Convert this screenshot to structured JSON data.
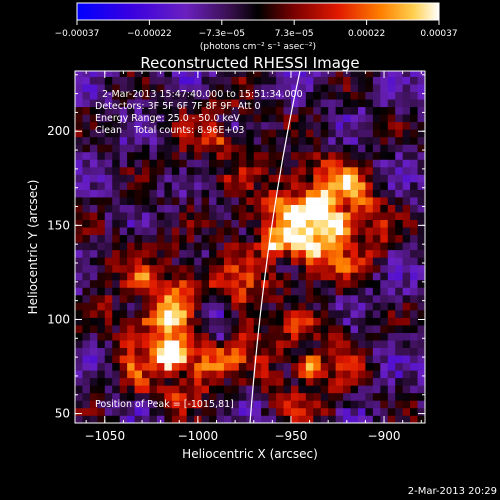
{
  "chart_data": {
    "type": "heatmap",
    "title": "Reconstructed RHESSI Image",
    "xlabel": "Heliocentric X (arcsec)",
    "ylabel": "Heliocentric Y (arcsec)",
    "xlim": [
      -1066,
      -878
    ],
    "ylim": [
      45,
      232
    ],
    "x_ticks": [
      -1050,
      -1000,
      -950,
      -900
    ],
    "y_ticks": [
      50,
      100,
      150,
      200
    ],
    "x_tick_labels": [
      "−1050",
      "−1000",
      "−950",
      "−900"
    ],
    "y_tick_labels": [
      "50",
      "100",
      "150",
      "200"
    ],
    "colorbar": {
      "min": -0.00037,
      "max": 0.00037,
      "tick_labels": [
        "−0.00037",
        "−0.00022",
        "−7.3e−05",
        "7.3e−05",
        "0.00022",
        "0.00037"
      ],
      "units_label": "(photons cm⁻² s⁻¹ asec⁻²)",
      "colors": [
        "#0000ff",
        "#4a00c0",
        "#7a3fb0",
        "#000000",
        "#8b0000",
        "#ff2000",
        "#ff9000",
        "#ffe060",
        "#ffffff"
      ]
    },
    "annotations": [
      "2-Mar-2013 15:47:40.000 to 15:51:34.000",
      "Detectors: 3F 5F 6F 7F 8F 9F, Att 0",
      "Energy Range: 25.0 - 50.0 keV",
      "Clean    Total counts: 8.96E+03"
    ],
    "peak_label": "Position of Peak = [-1015,81]",
    "peak": [
      -1015,
      81
    ],
    "limb_label": "",
    "grid_points": [
      {
        "x": -1015,
        "y": 81,
        "v": 1.0
      },
      {
        "x": -935,
        "y": 160,
        "v": 0.9
      },
      {
        "x": -925,
        "y": 150,
        "v": 0.85
      },
      {
        "x": -940,
        "y": 75,
        "v": 0.8
      },
      {
        "x": -960,
        "y": 140,
        "v": 0.7
      },
      {
        "x": -1030,
        "y": 120,
        "v": 0.55
      },
      {
        "x": -990,
        "y": 195,
        "v": 0.5
      }
    ]
  },
  "footer": {
    "timestamp": "2-Mar-2013 20:29"
  }
}
